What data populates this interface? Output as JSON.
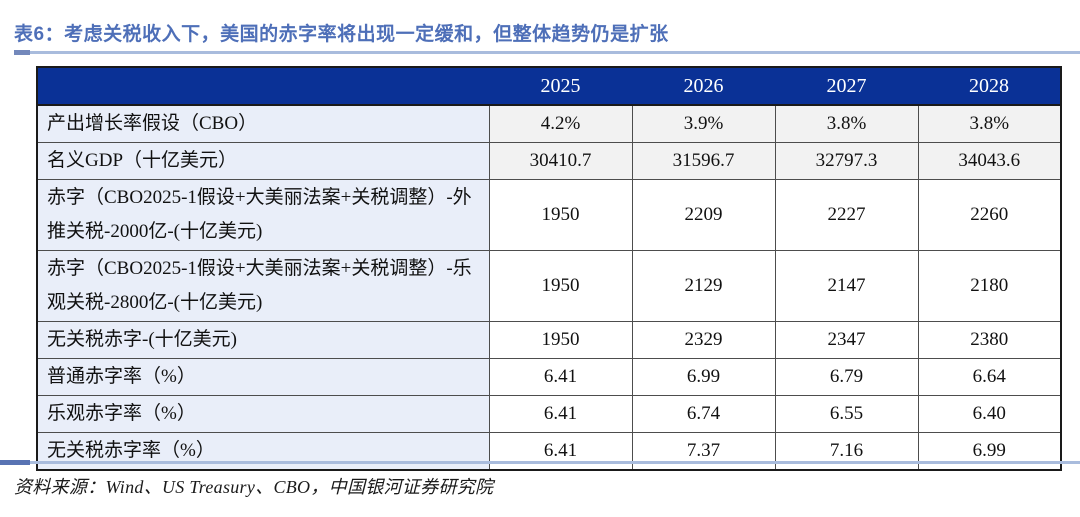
{
  "title": "表6：考虑关税收入下，美国的赤字率将出现一定缓和，但整体趋势仍是扩张",
  "table": {
    "header": [
      "",
      "2025",
      "2026",
      "2027",
      "2028"
    ],
    "rows": [
      {
        "label": "产出增长率假设（CBO）",
        "values": [
          "4.2%",
          "3.9%",
          "3.8%",
          "3.8%"
        ],
        "shaded": true
      },
      {
        "label": "名义GDP（十亿美元）",
        "values": [
          "30410.7",
          "31596.7",
          "32797.3",
          "34043.6"
        ],
        "shaded": true
      },
      {
        "label": "赤字（CBO2025-1假设+大美丽法案+关税调整）-外推关税-2000亿-(十亿美元)",
        "values": [
          "1950",
          "2209",
          "2227",
          "2260"
        ],
        "shaded": false
      },
      {
        "label": "赤字（CBO2025-1假设+大美丽法案+关税调整）-乐观关税-2800亿-(十亿美元)",
        "values": [
          "1950",
          "2129",
          "2147",
          "2180"
        ],
        "shaded": false
      },
      {
        "label": "无关税赤字-(十亿美元)",
        "values": [
          "1950",
          "2329",
          "2347",
          "2380"
        ],
        "shaded": false
      },
      {
        "label": "普通赤字率（%）",
        "values": [
          "6.41",
          "6.99",
          "6.79",
          "6.64"
        ],
        "shaded": false
      },
      {
        "label": "乐观赤字率（%）",
        "values": [
          "6.41",
          "6.74",
          "6.55",
          "6.40"
        ],
        "shaded": false
      },
      {
        "label": "无关税赤字率（%）",
        "values": [
          "6.41",
          "7.37",
          "7.16",
          "6.99"
        ],
        "shaded": false
      }
    ]
  },
  "source": "资料来源：Wind、US Treasury、CBO，中国银河证券研究院",
  "colors": {
    "header_bg": "#0a3196",
    "header_text": "#ffffff",
    "label_column_bg": "#e9eef9",
    "shaded_cell_bg": "#f2f2f2",
    "title_text": "#4e6fb8",
    "rule_light": "#a9bcdd",
    "rule_dark": "#5873b3",
    "border_dark": "#1a1a1a"
  }
}
